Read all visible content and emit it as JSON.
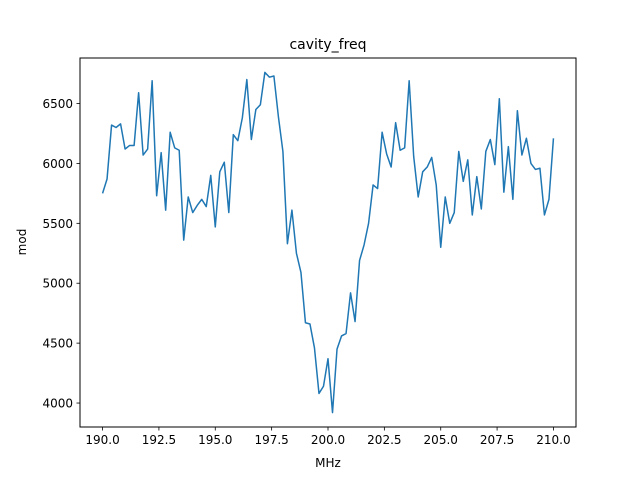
{
  "chart_data": {
    "type": "line",
    "title": "cavity_freq",
    "xlabel": "MHz",
    "ylabel": "mod",
    "xlim": [
      189.0,
      211.0
    ],
    "ylim": [
      3800,
      6880
    ],
    "xticks": [
      190.0,
      192.5,
      195.0,
      197.5,
      200.0,
      202.5,
      205.0,
      207.5,
      210.0
    ],
    "xtick_labels": [
      "190.0",
      "192.5",
      "195.0",
      "197.5",
      "200.0",
      "202.5",
      "205.0",
      "207.5",
      "210.0"
    ],
    "yticks": [
      4000,
      4500,
      5000,
      5500,
      6000,
      6500
    ],
    "ytick_labels": [
      "4000",
      "4500",
      "5000",
      "5500",
      "6000",
      "6500"
    ],
    "grid": false,
    "line_color": "#1f77b4",
    "series": [
      {
        "x": [
          190.0,
          190.2,
          190.4,
          190.6,
          190.8,
          191.0,
          191.2,
          191.4,
          191.6,
          191.8,
          192.0,
          192.2,
          192.4,
          192.6,
          192.8,
          193.0,
          193.2,
          193.4,
          193.6,
          193.8,
          194.0,
          194.2,
          194.4,
          194.6,
          194.8,
          195.0,
          195.2,
          195.4,
          195.6,
          195.8,
          196.0,
          196.2,
          196.4,
          196.6,
          196.8,
          197.0,
          197.2,
          197.4,
          197.6,
          197.8,
          198.0,
          198.2,
          198.4,
          198.6,
          198.8,
          199.0,
          199.2,
          199.4,
          199.6,
          199.8,
          200.0,
          200.2,
          200.4,
          200.6,
          200.8,
          201.0,
          201.2,
          201.4,
          201.6,
          201.8,
          202.0,
          202.2,
          202.4,
          202.6,
          202.8,
          203.0,
          203.2,
          203.4,
          203.6,
          203.8,
          204.0,
          204.2,
          204.4,
          204.6,
          204.8,
          205.0,
          205.2,
          205.4,
          205.6,
          205.8,
          206.0,
          206.2,
          206.4,
          206.6,
          206.8,
          207.0,
          207.2,
          207.4,
          207.6,
          207.8,
          208.0,
          208.2,
          208.4,
          208.6,
          208.8,
          209.0,
          209.2,
          209.4,
          209.6,
          209.8,
          210.0
        ],
        "y": [
          5750,
          5870,
          6320,
          6300,
          6330,
          6120,
          6150,
          6150,
          6590,
          6070,
          6120,
          6690,
          5730,
          6090,
          5610,
          6260,
          6130,
          6110,
          5360,
          5720,
          5590,
          5650,
          5700,
          5640,
          5900,
          5470,
          5930,
          6010,
          5590,
          6240,
          6190,
          6380,
          6700,
          6200,
          6450,
          6490,
          6760,
          6720,
          6730,
          6390,
          6100,
          5330,
          5610,
          5250,
          5090,
          4670,
          4660,
          4460,
          4080,
          4140,
          4370,
          3920,
          4450,
          4560,
          4580,
          4920,
          4680,
          5190,
          5320,
          5500,
          5820,
          5790,
          6260,
          6080,
          5970,
          6340,
          6110,
          6130,
          6690,
          6060,
          5720,
          5930,
          5970,
          6050,
          5820,
          5300,
          5720,
          5500,
          5590,
          6100,
          5850,
          6030,
          5570,
          5890,
          5620,
          6100,
          6200,
          5990,
          6540,
          5760,
          6140,
          5700,
          6440,
          6070,
          6210,
          6000,
          5950,
          5960,
          5570,
          5700,
          6210
        ]
      }
    ]
  }
}
